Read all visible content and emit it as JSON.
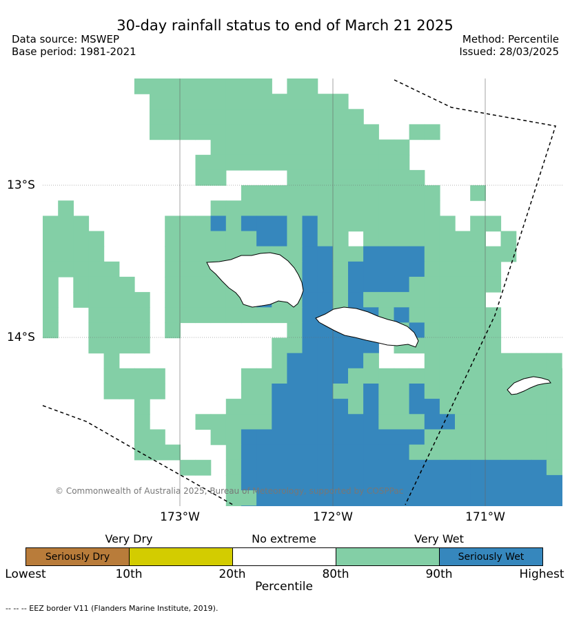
{
  "title": "30-day rainfall status to end of March 21 2025",
  "data_source": "Data source: MSWEP",
  "base_period": "Base period: 1981-2021",
  "method": "Method: Percentile",
  "issued": "Issued: 28/03/2025",
  "lat_labels": [
    "13°S",
    "14°S"
  ],
  "lon_labels": [
    "173°W",
    "172°W",
    "171°W"
  ],
  "copyright": "© Commonwealth of Australia 2025, Bureau of Meteorology, supported by COSPPac",
  "legend": {
    "categories": [
      "Very Dry",
      "No extreme",
      "Very Wet"
    ],
    "boxes": [
      {
        "label": "Seriously Dry",
        "color": "#b97c3a"
      },
      {
        "label": "",
        "color": "#d3cc00"
      },
      {
        "label": "",
        "color": "#ffffff"
      },
      {
        "label": "",
        "color": "#83cfa6"
      },
      {
        "label": "Seriously Wet",
        "color": "#3687bd"
      }
    ],
    "ticks": [
      "Lowest",
      "10th",
      "20th",
      "80th",
      "90th",
      "Highest"
    ],
    "axis_label": "Percentile"
  },
  "footnote": "-- -- -- EEZ border V11 (Flanders Marine Institute, 2019).",
  "colors": {
    "very_wet": "#83cfa6",
    "seriously_wet": "#3687bd"
  }
}
